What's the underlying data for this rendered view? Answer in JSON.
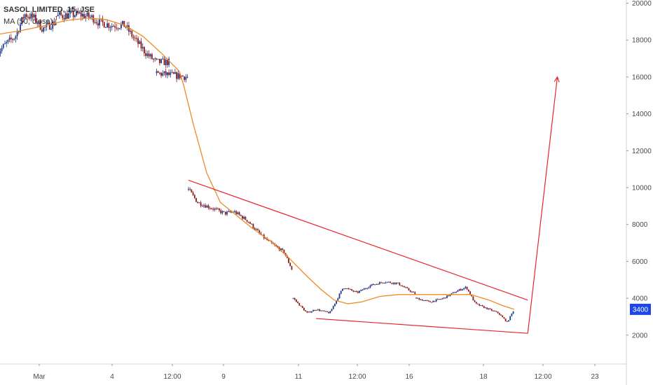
{
  "legend": {
    "symbol": "SASOL LIMITED, 15, JSE",
    "indicator": "MA (50, close)"
  },
  "colors": {
    "up": "#1e3a8a",
    "down": "#8b1a1a",
    "ma": "#f08a24",
    "pattern": "#e8262a",
    "badge": "#1c46e6",
    "axis": "#d6d6d6"
  },
  "chart_data": {
    "type": "candlestick",
    "title": "SASOL LIMITED, 15, JSE",
    "ylabel": "",
    "ylim": [
      1200,
      20600
    ],
    "y_ticks": [
      2000,
      4000,
      6000,
      8000,
      10000,
      12000,
      14000,
      16000,
      18000,
      20000
    ],
    "x_ticks": [
      "Mar",
      "4",
      "12:00",
      "9",
      "11",
      "12:00",
      "16",
      "18",
      "12:00",
      "23"
    ],
    "last_price_label": "3400",
    "segments": [
      {
        "start": 0,
        "end": 1.3,
        "anchors": [
          [
            0,
            17300
          ],
          [
            0.2,
            17800
          ],
          [
            0.4,
            18200
          ],
          [
            0.6,
            19400
          ],
          [
            0.8,
            19200
          ],
          [
            1.0,
            18600
          ],
          [
            1.3,
            19000
          ]
        ]
      },
      {
        "start": 1.3,
        "end": 3.8,
        "anchors": [
          [
            1.3,
            19300
          ],
          [
            1.8,
            19400
          ],
          [
            2.1,
            19200
          ],
          [
            2.2,
            19000
          ],
          [
            2.5,
            18800
          ],
          [
            2.8,
            18800
          ],
          [
            3.0,
            18100
          ],
          [
            3.3,
            17200
          ],
          [
            3.5,
            16800
          ]
        ]
      },
      {
        "start": 3.5,
        "end": 4.2,
        "anchors": [
          [
            3.5,
            16200
          ],
          [
            3.8,
            16100
          ],
          [
            4.2,
            16000
          ]
        ]
      },
      {
        "start": 4.2,
        "end": 6.5,
        "anchors": [
          [
            4.2,
            9900
          ],
          [
            4.4,
            9200
          ],
          [
            4.8,
            8800
          ],
          [
            5.0,
            8600
          ],
          [
            5.2,
            8700
          ],
          [
            5.5,
            8200
          ],
          [
            5.8,
            7400
          ],
          [
            6.0,
            7000
          ],
          [
            6.3,
            6500
          ],
          [
            6.5,
            5400
          ]
        ]
      },
      {
        "start": 6.5,
        "end": 9.2,
        "anchors": [
          [
            6.5,
            4000
          ],
          [
            6.8,
            3200
          ],
          [
            7.0,
            3400
          ],
          [
            7.3,
            3200
          ],
          [
            7.6,
            4600
          ],
          [
            7.9,
            4300
          ],
          [
            8.2,
            4700
          ],
          [
            8.5,
            4900
          ],
          [
            8.8,
            4800
          ],
          [
            9.2,
            4200
          ]
        ]
      },
      {
        "start": 9.2,
        "end": 11.35,
        "anchors": [
          [
            9.2,
            4000
          ],
          [
            9.5,
            3800
          ],
          [
            9.8,
            4000
          ],
          [
            10.1,
            4400
          ],
          [
            10.3,
            4600
          ],
          [
            10.5,
            3700
          ],
          [
            10.8,
            3400
          ],
          [
            11.0,
            3200
          ],
          [
            11.2,
            2700
          ],
          [
            11.35,
            3400
          ]
        ]
      }
    ],
    "moving_average": {
      "name": "MA (50, close)",
      "points": [
        [
          0,
          18300
        ],
        [
          0.5,
          18500
        ],
        [
          1.0,
          18750
        ],
        [
          1.5,
          19050
        ],
        [
          2.0,
          19200
        ],
        [
          2.4,
          19100
        ],
        [
          2.8,
          18800
        ],
        [
          3.2,
          18200
        ],
        [
          3.6,
          17300
        ],
        [
          4.0,
          16300
        ],
        [
          4.1,
          15500
        ],
        [
          4.3,
          13500
        ],
        [
          4.6,
          10800
        ],
        [
          4.9,
          9200
        ],
        [
          5.2,
          8600
        ],
        [
          5.6,
          7800
        ],
        [
          6.0,
          7100
        ],
        [
          6.4,
          6200
        ],
        [
          6.8,
          5200
        ],
        [
          7.1,
          4500
        ],
        [
          7.4,
          3900
        ],
        [
          7.7,
          3700
        ],
        [
          8.0,
          3800
        ],
        [
          8.4,
          4100
        ],
        [
          8.8,
          4200
        ],
        [
          9.2,
          4200
        ],
        [
          9.6,
          4200
        ],
        [
          10.0,
          4200
        ],
        [
          10.4,
          4200
        ],
        [
          10.8,
          3900
        ],
        [
          11.1,
          3600
        ],
        [
          11.35,
          3400
        ]
      ]
    },
    "pattern_lines": [
      {
        "name": "upper",
        "points": [
          [
            4.2,
            10400
          ],
          [
            11.65,
            3900
          ]
        ]
      },
      {
        "name": "lower",
        "points": [
          [
            7.0,
            2900
          ],
          [
            11.65,
            2100
          ]
        ]
      },
      {
        "name": "target",
        "points": [
          [
            11.65,
            2100
          ],
          [
            12.3,
            16000
          ]
        ]
      }
    ]
  }
}
